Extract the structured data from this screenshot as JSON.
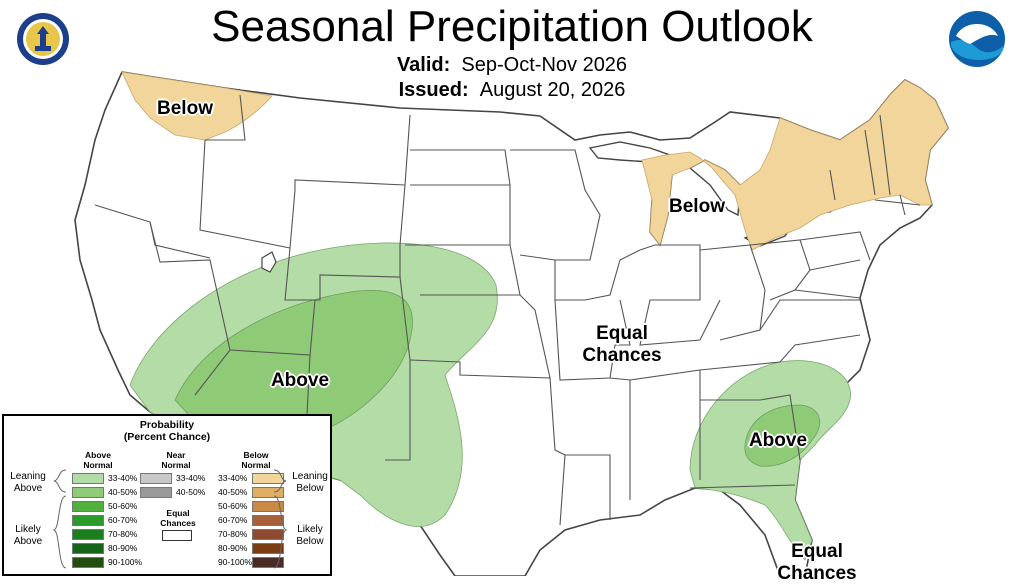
{
  "header": {
    "title": "Seasonal Precipitation Outlook",
    "valid_label": "Valid:",
    "valid_value": "Sep-Oct-Nov 2026",
    "issued_label": "Issued:",
    "issued_value": "August 20, 2026"
  },
  "colors": {
    "above_light": "#b3dca6",
    "above_mid": "#8fcb77",
    "below_light": "#f2d59b",
    "land": "#ffffff",
    "border": "#555555"
  },
  "map_labels": {
    "northwest": "Below",
    "great_lakes": "Below",
    "southwest": "Above",
    "southeast": "Above",
    "central_line1": "Equal",
    "central_line2": "Chances",
    "florida_line1": "Equal",
    "florida_line2": "Chances"
  },
  "legend": {
    "title_line1": "Probability",
    "title_line2": "(Percent Chance)",
    "above_head_line1": "Above",
    "above_head_line2": "Normal",
    "near_head_line1": "Near",
    "near_head_line2": "Normal",
    "below_head_line1": "Below",
    "below_head_line2": "Normal",
    "leaning_above_line1": "Leaning",
    "leaning_above_line2": "Above",
    "likely_above_line1": "Likely",
    "likely_above_line2": "Above",
    "leaning_below_line1": "Leaning",
    "leaning_below_line2": "Below",
    "likely_below_line1": "Likely",
    "likely_below_line2": "Below",
    "equal_line1": "Equal",
    "equal_line2": "Chances",
    "above": [
      {
        "label": "33-40%",
        "color": "#b3dca6"
      },
      {
        "label": "40-50%",
        "color": "#8fcb77"
      },
      {
        "label": "50-60%",
        "color": "#4fb03e"
      },
      {
        "label": "60-70%",
        "color": "#2b9a2b"
      },
      {
        "label": "70-80%",
        "color": "#1b7f1f"
      },
      {
        "label": "80-90%",
        "color": "#166417"
      },
      {
        "label": "90-100%",
        "color": "#244d10"
      }
    ],
    "near": [
      {
        "label": "33-40%",
        "color": "#c8c8c8"
      },
      {
        "label": "40-50%",
        "color": "#9a9a9a"
      }
    ],
    "below": [
      {
        "label": "33-40%",
        "color": "#f2d59b"
      },
      {
        "label": "40-50%",
        "color": "#deae62"
      },
      {
        "label": "50-60%",
        "color": "#c98a45"
      },
      {
        "label": "60-70%",
        "color": "#a8603b"
      },
      {
        "label": "70-80%",
        "color": "#8d4a30"
      },
      {
        "label": "80-90%",
        "color": "#7a3c10"
      },
      {
        "label": "90-100%",
        "color": "#4a2c26"
      }
    ]
  }
}
